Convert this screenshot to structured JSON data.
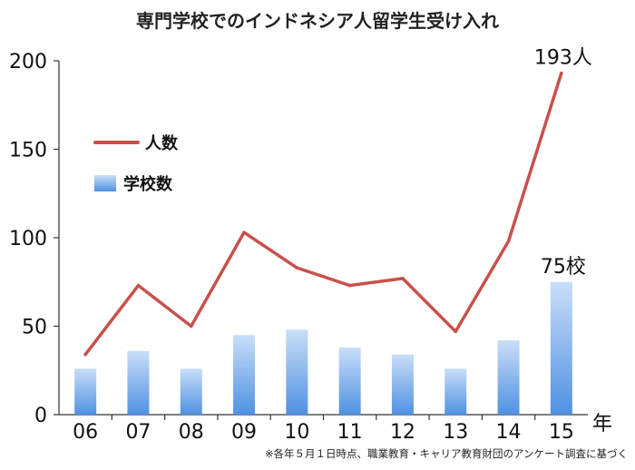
{
  "chart_data": {
    "type": "bar",
    "title": "専門学校でのインドネシア人留学生受け入れ",
    "categories": [
      "06",
      "07",
      "08",
      "09",
      "10",
      "11",
      "12",
      "13",
      "14",
      "15"
    ],
    "x_unit": "年",
    "ylim": [
      0,
      200
    ],
    "yticks": [
      0,
      50,
      100,
      150,
      200
    ],
    "grid": false,
    "legend_position": "top-left",
    "series": [
      {
        "name": "人数",
        "kind": "line",
        "color": "#c8504c",
        "values": [
          34,
          73,
          50,
          103,
          83,
          73,
          77,
          47,
          98,
          193
        ]
      },
      {
        "name": "学校数",
        "kind": "bar",
        "color": "#7fb5ee",
        "values": [
          26,
          36,
          26,
          45,
          48,
          38,
          34,
          26,
          42,
          75
        ]
      }
    ],
    "annotations": [
      {
        "text": "193人",
        "series": "人数",
        "category": "15"
      },
      {
        "text": "75校",
        "series": "学校数",
        "category": "15"
      }
    ],
    "note": "※各年５月１日時点、職業教育・キャリア教育財団のアンケート調査に基づく"
  }
}
